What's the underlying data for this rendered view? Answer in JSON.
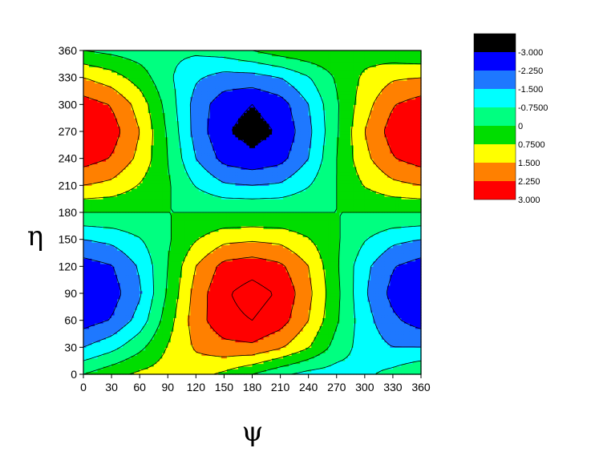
{
  "chart_data": {
    "type": "heatmap",
    "subtype": "filled-contour",
    "xlabel": "ψ",
    "ylabel": "η",
    "xlim": [
      0,
      360
    ],
    "ylim": [
      0,
      360
    ],
    "xticks": [
      0,
      30,
      60,
      90,
      120,
      150,
      180,
      210,
      240,
      270,
      300,
      330,
      360
    ],
    "yticks": [
      0,
      30,
      60,
      90,
      120,
      150,
      180,
      210,
      240,
      270,
      300,
      330,
      360
    ],
    "grid": false,
    "legend_position": "top-right",
    "levels": [
      -3.75,
      -3.0,
      -2.25,
      -1.5,
      -0.75,
      0,
      0.75,
      1.5,
      2.25,
      3.0
    ],
    "legend_labels": [
      "-3.000",
      "-2.250",
      "-1.500",
      "-0.7500",
      "0",
      "0.7500",
      "1.500",
      "2.250",
      "3.000"
    ],
    "colors": [
      "#000000",
      "#0000ff",
      "#1e78ff",
      "#00ffff",
      "#00ff80",
      "#00dd00",
      "#ffff00",
      "#ff8000",
      "#ff0000"
    ],
    "line_color": "#000000",
    "z": [
      [
        0.0,
        0.5,
        0.9,
        1.1,
        1.0,
        0.6,
        0.0,
        -0.6,
        -1.0,
        -1.1,
        -0.9,
        -0.5,
        0.0
      ],
      [
        -1.5,
        -1.0,
        -0.2,
        0.8,
        1.6,
        2.0,
        2.1,
        1.6,
        0.8,
        -0.3,
        -1.1,
        -1.5,
        -1.5
      ],
      [
        -2.6,
        -2.2,
        -1.2,
        0.4,
        1.9,
        2.8,
        3.0,
        2.6,
        1.5,
        0.1,
        -1.2,
        -2.1,
        -2.6
      ],
      [
        -3.0,
        -2.6,
        -1.6,
        0.1,
        1.8,
        2.9,
        3.3,
        2.9,
        1.7,
        0.2,
        -1.4,
        -2.5,
        -3.0
      ],
      [
        -2.6,
        -2.3,
        -1.4,
        0.0,
        1.5,
        2.5,
        2.7,
        2.4,
        1.5,
        0.1,
        -1.3,
        -2.2,
        -2.6
      ],
      [
        -1.5,
        -1.3,
        -0.8,
        -0.1,
        0.7,
        1.3,
        1.4,
        1.3,
        0.8,
        0.1,
        -0.7,
        -1.3,
        -1.5
      ],
      [
        0.0,
        0.0,
        0.0,
        0.0,
        0.0,
        0.0,
        0.0,
        0.0,
        0.0,
        0.0,
        0.0,
        0.0,
        0.0
      ],
      [
        1.5,
        1.3,
        0.7,
        0.1,
        -0.8,
        -1.4,
        -1.5,
        -1.4,
        -0.8,
        0.0,
        0.8,
        1.3,
        1.5
      ],
      [
        2.6,
        2.2,
        1.3,
        0.0,
        -1.5,
        -2.5,
        -2.8,
        -2.5,
        -1.5,
        0.0,
        1.3,
        2.2,
        2.6
      ],
      [
        3.0,
        2.6,
        1.5,
        -0.1,
        -1.8,
        -2.9,
        -3.3,
        -2.9,
        -1.7,
        -0.1,
        1.5,
        2.6,
        3.0
      ],
      [
        2.6,
        2.2,
        1.2,
        -0.3,
        -1.8,
        -2.7,
        -3.0,
        -2.6,
        -1.5,
        -0.1,
        1.2,
        2.2,
        2.6
      ],
      [
        1.5,
        1.1,
        0.4,
        -0.6,
        -1.4,
        -1.8,
        -1.8,
        -1.5,
        -0.8,
        0.1,
        0.9,
        1.4,
        1.5
      ],
      [
        0.0,
        -0.2,
        -0.4,
        -0.6,
        -0.6,
        -0.4,
        0.0,
        0.4,
        0.6,
        0.6,
        0.4,
        0.2,
        0.0
      ]
    ]
  }
}
